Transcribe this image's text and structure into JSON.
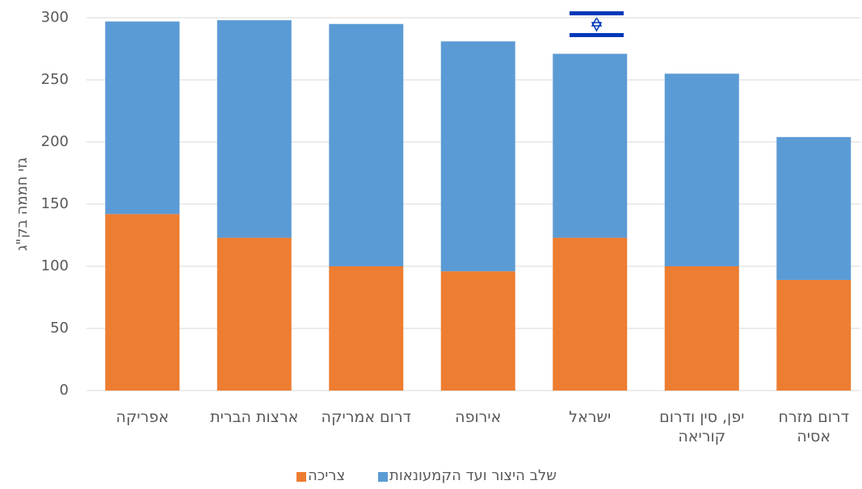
{
  "chart_data": {
    "type": "stacked_bar",
    "y_label": "גזי חממה בק\"ג",
    "categories": [
      "אפריקה",
      "ארצות הברית",
      "דרום אמריקה",
      "אירופה",
      "ישראל",
      "יפן, סין ודרום קוריאה",
      "דרום מזרח אסיה"
    ],
    "series": [
      {
        "name": "צריכה",
        "color": "#ed7d31",
        "values": [
          142,
          123,
          100,
          96,
          123,
          100,
          89
        ]
      },
      {
        "name": "שלב היצור ועד הקמעונאות",
        "color": "#5b9bd5",
        "values": [
          155,
          175,
          195,
          185,
          148,
          155,
          115
        ]
      }
    ],
    "ylim": [
      0,
      300
    ],
    "yticks": [
      0,
      50,
      100,
      150,
      200,
      250,
      300
    ],
    "grid": true
  }
}
